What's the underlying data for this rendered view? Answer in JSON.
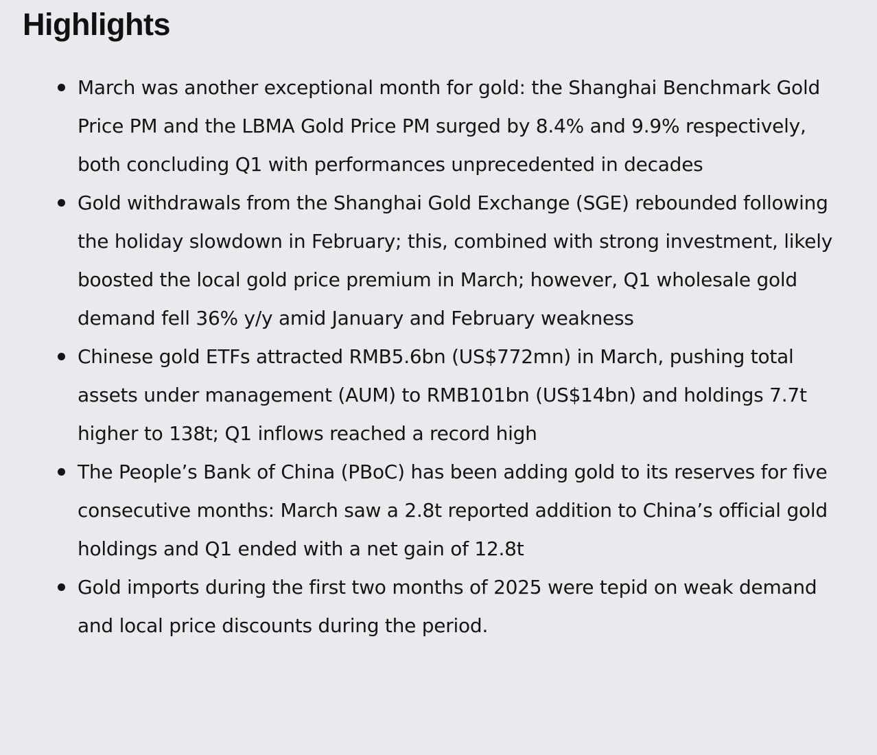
{
  "section": {
    "title": "Highlights"
  },
  "highlights": [
    "March was another exceptional month for gold: the Shanghai Benchmark Gold Price PM and the LBMA Gold Price PM surged by 8.4% and 9.9% respectively, both concluding Q1 with performances unprecedented in decades",
    "Gold withdrawals from the Shanghai Gold Exchange (SGE) rebounded following the holiday slowdown in February; this, combined with strong investment, likely boosted the local gold price premium in March; however, Q1 wholesale gold demand fell 36% y/y amid January and February weakness",
    "Chinese gold ETFs attracted RMB5.6bn (US$772mn) in March, pushing total assets under management (AUM) to RMB101bn (US$14bn) and holdings 7.7t higher to 138t; Q1 inflows reached a record high",
    "The People’s Bank of China (PBoC) has been adding gold to its reserves for five consecutive months: March saw a 2.8t reported addition to China’s official gold holdings and Q1 ended with a net gain of 12.8t",
    "Gold imports during the first two months of 2025 were tepid on weak demand and local price discounts during the period."
  ]
}
